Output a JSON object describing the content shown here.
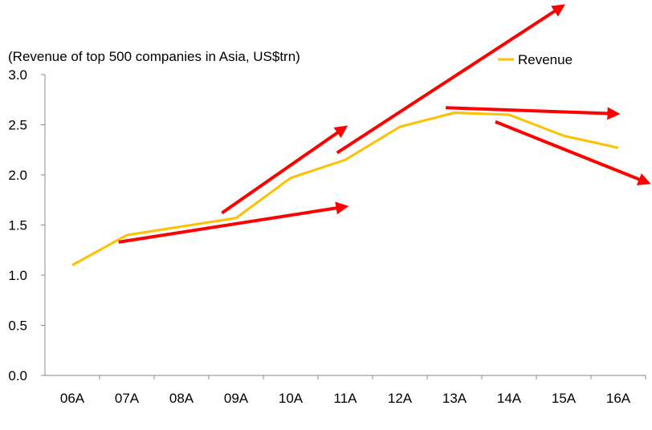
{
  "chart_data": {
    "type": "line",
    "title": "(Revenue of top 500 companies in Asia, US$trn)",
    "xlabel": "",
    "ylabel": "",
    "categories": [
      "06A",
      "07A",
      "08A",
      "09A",
      "10A",
      "11A",
      "12A",
      "13A",
      "14A",
      "15A",
      "16A"
    ],
    "series": [
      {
        "name": "Revenue",
        "color": "#FFC000",
        "values": [
          1.1,
          1.4,
          1.485,
          1.57,
          1.97,
          2.15,
          2.48,
          2.62,
          2.6,
          2.39,
          2.27
        ]
      }
    ],
    "ylim": [
      0,
      3.0
    ],
    "yticks": [
      "0.0",
      "0.5",
      "1.0",
      "1.5",
      "2.0",
      "2.5",
      "3.0"
    ],
    "grid": false,
    "legend": {
      "position": "top-right",
      "label": "Revenue"
    },
    "annotations": {
      "arrow_color": "#FF0000",
      "arrows": [
        {
          "from": [
            0.85,
            1.33
          ],
          "to": [
            4.96,
            1.68
          ]
        },
        {
          "from": [
            2.74,
            1.62
          ],
          "to": [
            4.96,
            2.46
          ]
        },
        {
          "from": [
            4.85,
            2.22
          ],
          "to": [
            8.94,
            3.67
          ]
        },
        {
          "from": [
            6.84,
            2.67
          ],
          "to": [
            9.93,
            2.61
          ]
        },
        {
          "from": [
            7.75,
            2.53
          ],
          "to": [
            10.5,
            1.93
          ]
        }
      ]
    }
  }
}
